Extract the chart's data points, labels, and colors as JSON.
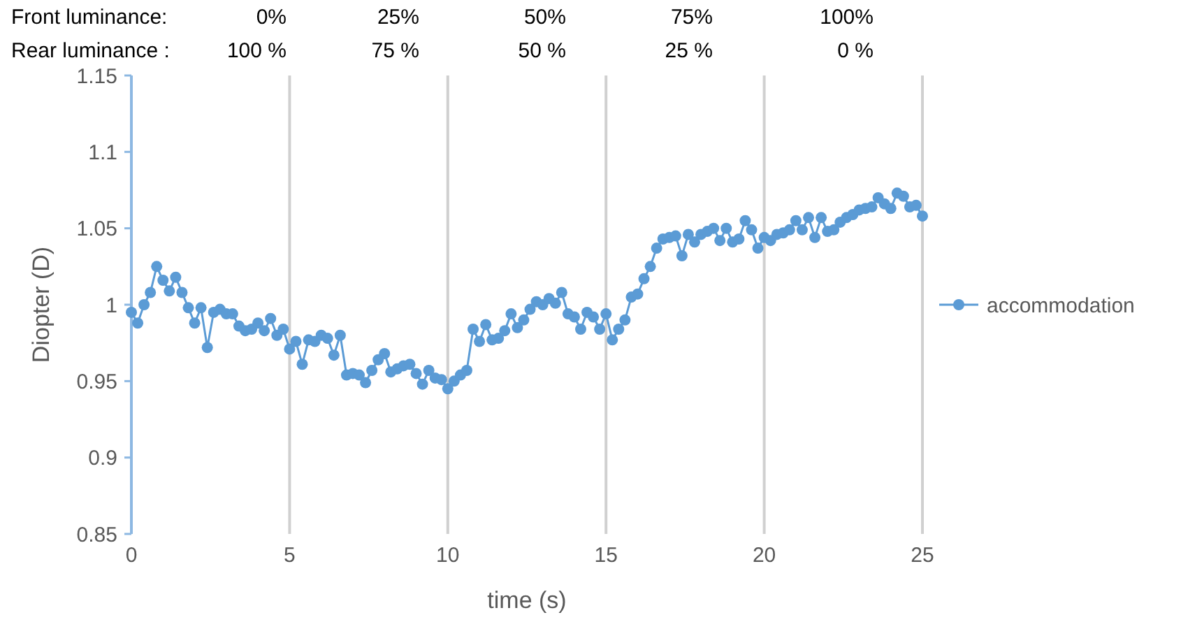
{
  "chart_data": {
    "type": "line",
    "xlabel": "time (s)",
    "ylabel": "Diopter (D)",
    "annotations": [
      "Front luminance:",
      "0%",
      "25%",
      "50%",
      "75%",
      "100%",
      "Rear luminance :",
      "100 %",
      "75 %",
      "50 %",
      "25 %",
      "0 %"
    ],
    "xlim": [
      0,
      25
    ],
    "xticks": [
      0,
      5,
      10,
      15,
      20,
      25
    ],
    "ylim": [
      0.85,
      1.15
    ],
    "yticks": [
      0.85,
      0.9,
      0.95,
      1,
      1.05,
      1.1,
      1.15
    ],
    "grid": "x",
    "legend": "right",
    "marker": "circle",
    "line_style": "solid",
    "series": [
      {
        "name": "accommodation",
        "color": "#5b9bd5",
        "x": [
          0,
          0.2,
          0.4,
          0.6,
          0.8,
          1,
          1.2,
          1.4,
          1.6,
          1.8,
          2,
          2.2,
          2.4,
          2.6,
          2.8,
          3,
          3.2,
          3.4,
          3.6,
          3.8,
          4,
          4.2,
          4.4,
          4.6,
          4.8,
          5,
          5.2,
          5.4,
          5.6,
          5.8,
          6,
          6.2,
          6.4,
          6.6,
          6.8,
          7,
          7.2,
          7.4,
          7.6,
          7.8,
          8,
          8.2,
          8.4,
          8.6,
          8.8,
          9,
          9.2,
          9.4,
          9.6,
          9.8,
          10,
          10.2,
          10.4,
          10.6,
          10.8,
          11,
          11.2,
          11.4,
          11.6,
          11.8,
          12,
          12.2,
          12.4,
          12.6,
          12.8,
          13,
          13.2,
          13.4,
          13.6,
          13.8,
          14,
          14.2,
          14.4,
          14.6,
          14.8,
          15,
          15.2,
          15.4,
          15.6,
          15.8,
          16,
          16.2,
          16.4,
          16.6,
          16.8,
          17,
          17.2,
          17.4,
          17.6,
          17.8,
          18,
          18.2,
          18.4,
          18.6,
          18.8,
          19,
          19.2,
          19.4,
          19.6,
          19.8,
          20,
          20.2,
          20.4,
          20.6,
          20.8,
          21,
          21.2,
          21.4,
          21.6,
          21.8,
          22,
          22.2,
          22.4,
          22.6,
          22.8,
          23,
          23.2,
          23.4,
          23.6,
          23.8,
          24,
          24.2,
          24.4,
          24.6,
          24.8,
          25
        ],
        "values": [
          0.995,
          0.988,
          1.0,
          1.008,
          1.025,
          1.016,
          1.009,
          1.018,
          1.008,
          0.998,
          0.988,
          0.998,
          0.972,
          0.995,
          0.997,
          0.994,
          0.994,
          0.986,
          0.983,
          0.984,
          0.988,
          0.983,
          0.991,
          0.98,
          0.984,
          0.971,
          0.976,
          0.961,
          0.977,
          0.976,
          0.98,
          0.978,
          0.967,
          0.98,
          0.954,
          0.955,
          0.954,
          0.949,
          0.957,
          0.964,
          0.968,
          0.956,
          0.958,
          0.96,
          0.961,
          0.955,
          0.948,
          0.957,
          0.952,
          0.951,
          0.945,
          0.95,
          0.954,
          0.957,
          0.984,
          0.976,
          0.987,
          0.977,
          0.978,
          0.983,
          0.994,
          0.985,
          0.99,
          0.997,
          1.002,
          1.0,
          1.004,
          1.001,
          1.008,
          0.994,
          0.992,
          0.984,
          0.995,
          0.992,
          0.984,
          0.994,
          0.977,
          0.984,
          0.99,
          1.005,
          1.007,
          1.017,
          1.025,
          1.037,
          1.043,
          1.044,
          1.045,
          1.032,
          1.046,
          1.041,
          1.046,
          1.048,
          1.05,
          1.042,
          1.05,
          1.041,
          1.043,
          1.055,
          1.049,
          1.037,
          1.044,
          1.042,
          1.046,
          1.047,
          1.049,
          1.055,
          1.049,
          1.057,
          1.044,
          1.057,
          1.048,
          1.049,
          1.054,
          1.057,
          1.059,
          1.062,
          1.063,
          1.064,
          1.07,
          1.066,
          1.063,
          1.073,
          1.071,
          1.064,
          1.065,
          1.058
        ]
      }
    ]
  }
}
